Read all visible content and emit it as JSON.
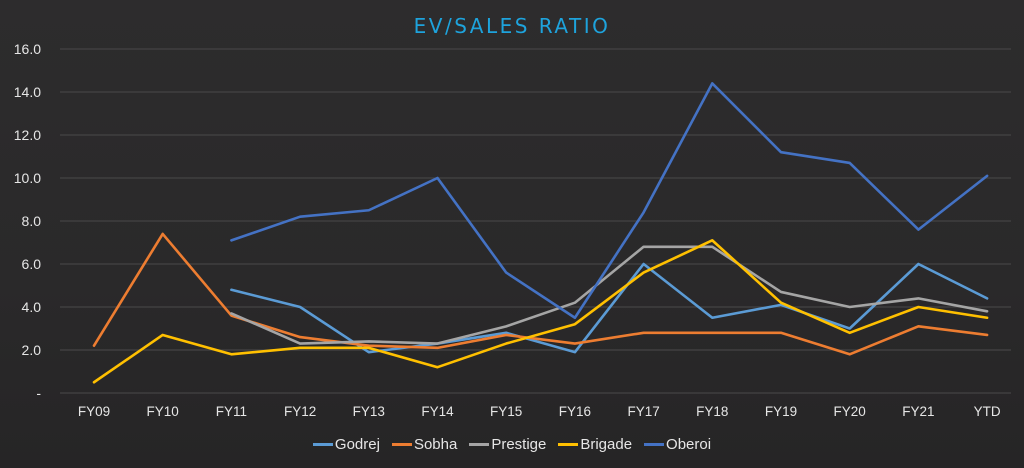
{
  "chart_data": {
    "type": "line",
    "title": "EV/SALES RATIO",
    "xlabel": "",
    "ylabel": "",
    "ylim": [
      0,
      16
    ],
    "yticks": [
      {
        "value": 0,
        "label": "-"
      },
      {
        "value": 2,
        "label": "2.0"
      },
      {
        "value": 4,
        "label": "4.0"
      },
      {
        "value": 6,
        "label": "6.0"
      },
      {
        "value": 8,
        "label": "8.0"
      },
      {
        "value": 10,
        "label": "10.0"
      },
      {
        "value": 12,
        "label": "12.0"
      },
      {
        "value": 14,
        "label": "14.0"
      },
      {
        "value": 16,
        "label": "16.0"
      }
    ],
    "grid": true,
    "legend_position": "bottom",
    "categories": [
      "FY09",
      "FY10",
      "FY11",
      "FY12",
      "FY13",
      "FY14",
      "FY15",
      "FY16",
      "FY17",
      "FY18",
      "FY19",
      "FY20",
      "FY21",
      "YTD"
    ],
    "series": [
      {
        "name": "Godrej",
        "color": "#5b9bd5",
        "values": [
          null,
          null,
          4.8,
          4.0,
          1.9,
          2.3,
          2.8,
          1.9,
          6.0,
          3.5,
          4.1,
          3.0,
          6.0,
          4.4
        ]
      },
      {
        "name": "Sobha",
        "color": "#ed7d31",
        "values": [
          2.2,
          7.4,
          3.6,
          2.6,
          2.2,
          2.1,
          2.7,
          2.3,
          2.8,
          2.8,
          2.8,
          1.8,
          3.1,
          2.7
        ]
      },
      {
        "name": "Prestige",
        "color": "#a5a5a5",
        "values": [
          null,
          null,
          3.7,
          2.3,
          2.4,
          2.3,
          3.1,
          4.2,
          6.8,
          6.8,
          4.7,
          4.0,
          4.4,
          3.8
        ]
      },
      {
        "name": "Brigade",
        "color": "#ffc000",
        "values": [
          0.5,
          2.7,
          1.8,
          2.1,
          2.1,
          1.2,
          2.3,
          3.2,
          5.6,
          7.1,
          4.2,
          2.8,
          4.0,
          3.5
        ]
      },
      {
        "name": "Oberoi",
        "color": "#4472c4",
        "values": [
          null,
          null,
          7.1,
          8.2,
          8.5,
          10.0,
          5.6,
          3.5,
          8.4,
          14.4,
          11.2,
          10.7,
          7.6,
          10.1
        ]
      }
    ]
  }
}
